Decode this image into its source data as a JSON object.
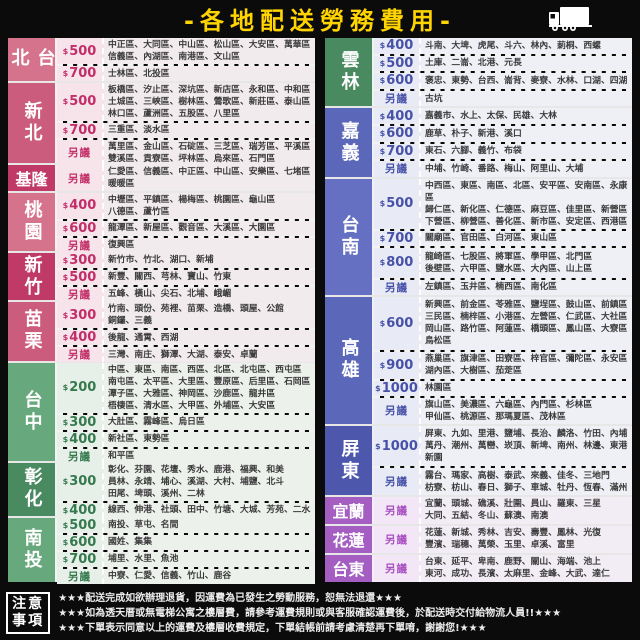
{
  "header": {
    "title": "-各地配送勞務費用-",
    "title_color": "#ffd400",
    "truck_icon": "truck-icon"
  },
  "left_regions": [
    {
      "name": "台北",
      "label_bg": "#d5738c",
      "accent": "#c22e68",
      "price_bg": "#f7e4ea",
      "cell_bg": "#f2ebed",
      "rows": [
        {
          "price": "$500",
          "districts": "中正區、大同區、中山區、松山區、大安區、萬華區\n信義區、內湖區、南港區、文山區"
        },
        {
          "price": "$700",
          "districts": "士林區、北投區"
        }
      ]
    },
    {
      "name": "新北",
      "label_bg": "#cc5c7d",
      "accent": "#c22e68",
      "price_bg": "#f7e4ea",
      "cell_bg": "#f2ebed",
      "rows": [
        {
          "price": "$500",
          "districts": "板橋區、汐止區、深坑區、新店區、永和區、中和區\n土城區、三峽區、樹林區、鶯歌區、新莊區、泰山區\n林口區、蘆洲區、五股區、八里區"
        },
        {
          "price": "$700",
          "districts": "三重區、淡水區"
        },
        {
          "price": "另議",
          "districts": "萬里區、金山區、石碇區、三芝區、瑞芳區、平溪區\n雙溪區、貢寮區、坪林區、烏來區、石門區"
        }
      ]
    },
    {
      "name": "基隆",
      "label_bg": "#c03a68",
      "accent": "#c22e68",
      "price_bg": "#f7e4ea",
      "cell_bg": "#f2ebed",
      "rows": [
        {
          "price": "另議",
          "districts": "仁愛區、信義區、中正區、中山區、安樂區、七堵區\n暖暖區"
        }
      ]
    },
    {
      "name": "桃園",
      "label_bg": "#d5738c",
      "accent": "#c22e68",
      "price_bg": "#f7e4ea",
      "cell_bg": "#f2ebed",
      "rows": [
        {
          "price": "$400",
          "districts": "中壢區、平鎮區、楊梅區、桃園區、龜山區\n八德區、蘆竹區"
        },
        {
          "price": "$600",
          "districts": "龍潭區、新屋區、觀音區、大溪區、大園區"
        },
        {
          "price": "另議",
          "districts": "復興區"
        }
      ]
    },
    {
      "name": "新竹",
      "label_bg": "#c03a68",
      "accent": "#c22e68",
      "price_bg": "#f7e4ea",
      "cell_bg": "#f2ebed",
      "rows": [
        {
          "price": "$300",
          "districts": "新竹市、竹北、湖口、新埔"
        },
        {
          "price": "$500",
          "districts": "新豐、關西、芎林、寶山、竹東"
        },
        {
          "price": "另議",
          "districts": "五峰、橫山、尖石、北埔、峨嵋"
        }
      ]
    },
    {
      "name": "苗栗",
      "label_bg": "#cc5c7d",
      "accent": "#c22e68",
      "price_bg": "#f7e4ea",
      "cell_bg": "#f2ebed",
      "rows": [
        {
          "price": "$300",
          "districts": "竹南、頭份、苑裡、苗栗、造橋、頭屋、公館\n銅鑼、三義"
        },
        {
          "price": "$400",
          "districts": "後龍、通霄、西湖"
        },
        {
          "price": "另議",
          "districts": "三灣、南庄、獅潭、大湖、泰安、卓蘭"
        }
      ]
    },
    {
      "name": "台中",
      "label_bg": "#68a87d",
      "accent": "#35794e",
      "price_bg": "#e7f0e8",
      "cell_bg": "#edf1ec",
      "rows": [
        {
          "price": "$200",
          "districts": "中區、東區、南區、西區、北區、北屯區、西屯區\n南屯區、太平區、大里區、豐原區、后里區、石岡區\n潭子區、大雅區、神岡區、沙鹿區、龍井區\n梧棲區、清水區、大甲區、外埔區、大安區"
        },
        {
          "price": "$300",
          "districts": "大肚區、霧峰區、烏日區"
        },
        {
          "price": "$400",
          "districts": "新社區、東勢區"
        },
        {
          "price": "另議",
          "districts": "和平區"
        }
      ]
    },
    {
      "name": "彰化",
      "label_bg": "#4a8a61",
      "accent": "#35794e",
      "price_bg": "#e7f0e8",
      "cell_bg": "#edf1ec",
      "rows": [
        {
          "price": "$300",
          "districts": "彰化、芬園、花壇、秀水、鹿港、福興、和美\n員林、永靖、埔心、溪湖、大村、埔鹽、北斗\n田尾、埤頭、溪州、二林"
        },
        {
          "price": "$400",
          "districts": "線西、伸港、社頭、田中、竹塘、大城、芳苑、二水"
        }
      ]
    },
    {
      "name": "南投",
      "label_bg": "#68a87d",
      "accent": "#35794e",
      "price_bg": "#e7f0e8",
      "cell_bg": "#edf1ec",
      "rows": [
        {
          "price": "$500",
          "districts": "南投、草屯、名間"
        },
        {
          "price": "$600",
          "districts": "國姓、集集"
        },
        {
          "price": "$700",
          "districts": "埔里、水里、魚池"
        },
        {
          "price": "另議",
          "districts": "中寮、仁愛、信義、竹山、鹿谷"
        }
      ]
    }
  ],
  "right_regions": [
    {
      "name": "雲林",
      "label_bg": "#4a8a61",
      "accent": "#4651a8",
      "price_bg": "#e8eaf6",
      "cell_bg": "#eef0f6",
      "rows": [
        {
          "price": "$400",
          "districts": "斗南、大埤、虎尾、斗六、林內、莿桐、西螺"
        },
        {
          "price": "$500",
          "districts": "土庫、二崙、北港、元長"
        },
        {
          "price": "$600",
          "districts": "褒忠、東勢、台西、崙背、麥寮、水林、口湖、四湖"
        },
        {
          "price": "另議",
          "districts": "古坑"
        }
      ]
    },
    {
      "name": "嘉義",
      "label_bg": "#5b67b8",
      "accent": "#4651a8",
      "price_bg": "#e8eaf6",
      "cell_bg": "#eef0f6",
      "rows": [
        {
          "price": "$400",
          "districts": "嘉義市、水上、太保、民雄、大林"
        },
        {
          "price": "$600",
          "districts": "鹿草、朴子、新港、溪口"
        },
        {
          "price": "$700",
          "districts": "東石、六腳、義竹、布袋"
        },
        {
          "price": "另議",
          "districts": "中埔、竹崎、番路、梅山、阿里山、大埔"
        }
      ]
    },
    {
      "name": "台南",
      "label_bg": "#6570c2",
      "accent": "#4651a8",
      "price_bg": "#e8eaf6",
      "cell_bg": "#eef0f6",
      "rows": [
        {
          "price": "$500",
          "districts": "中西區、東區、南區、北區、安平區、安南區、永康區\n歸仁區、新化區、仁德區、麻豆區、佳里區、新營區\n下營區、柳營區、善化區、新市區、安定區、西港區"
        },
        {
          "price": "$700",
          "districts": "關廟區、官田區、白河區、東山區"
        },
        {
          "price": "$800",
          "districts": "龍崎區、七股區、將軍區、學甲區、北門區\n後壁區、六甲區、鹽水區、大內區、山上區"
        },
        {
          "price": "另議",
          "districts": "左鎮區、玉井區、楠西區、南化區"
        }
      ]
    },
    {
      "name": "高雄",
      "label_bg": "#5b67b8",
      "accent": "#4651a8",
      "price_bg": "#e8eaf6",
      "cell_bg": "#eef0f6",
      "rows": [
        {
          "price": "$600",
          "districts": "新興區、前金區、苓雅區、鹽埕區、鼓山區、前鎮區\n三民區、楠梓區、小港區、左營區、仁武區、大社區\n岡山區、路竹區、阿蓮區、橋頭區、鳳山區、大寮區\n鳥松區"
        },
        {
          "price": "$900",
          "districts": "燕巢區、旗津區、田寮區、梓官區、彌陀區、永安區\n湖內區、大樹區、茄萣區"
        },
        {
          "price": "$1000",
          "districts": "林園區"
        },
        {
          "price": "另議",
          "districts": "旗山區、美濃區、六龜區、內門區、杉林區\n甲仙區、桃源區、那瑪夏區、茂林區"
        }
      ]
    },
    {
      "name": "屏東",
      "label_bg": "#4d58ac",
      "accent": "#4651a8",
      "price_bg": "#e8eaf6",
      "cell_bg": "#eef0f6",
      "rows": [
        {
          "price": "$1000",
          "districts": "屏東、九如、里港、鹽埔、長治、麟洛、竹田、內埔\n萬丹、潮州、萬巒、崁頂、新埤、南州、林邊、東港\n新園"
        },
        {
          "price": "另議",
          "districts": "霧台、瑪家、高樹、泰武、來義、佳冬、三地門\n枋寮、枋山、春日、獅子、車城、牡丹、恆春、滿州"
        }
      ]
    },
    {
      "name": "宜蘭",
      "label_bg": "#a45ec2",
      "accent": "#a84fc0",
      "price_bg": "#f2e6f7",
      "cell_bg": "#f2edf5",
      "rows": [
        {
          "price": "另議",
          "districts": "宜蘭、頭城、礁溪、壯圍、員山、羅東、三星\n大同、五結、冬山、蘇澳、南澳"
        }
      ]
    },
    {
      "name": "花蓮",
      "label_bg": "#a45ec2",
      "accent": "#a84fc0",
      "price_bg": "#f2e6f7",
      "cell_bg": "#f2edf5",
      "rows": [
        {
          "price": "另議",
          "districts": "花蓮、新城、秀林、吉安、壽豐、鳳林、光復\n豐濱、瑞穗、萬榮、玉里、卓溪、富里"
        }
      ]
    },
    {
      "name": "台東",
      "label_bg": "#a45ec2",
      "accent": "#a84fc0",
      "price_bg": "#f2e6f7",
      "cell_bg": "#f2edf5",
      "rows": [
        {
          "price": "另議",
          "districts": "台東、延平、卑南、鹿野、關山、海端、池上\n東河、成功、長濱、太麻里、金峰、大武、達仁"
        }
      ]
    }
  ],
  "notes": {
    "box_label": "注意事項",
    "lines": [
      "★★★配送完成如欲辦理退貨，因運費為已發生之勞動服務，恕無法退還★★★",
      "★★★如為透天厝或無電梯公寓之樓層費，請參考運費規則或與客服確認運費後，於配送時交付給物流人員!!★★★",
      "★★★下單表示同意以上的運費及樓層收費規定，下單結帳前請考慮清楚再下單唷，謝謝您!★★★"
    ]
  }
}
